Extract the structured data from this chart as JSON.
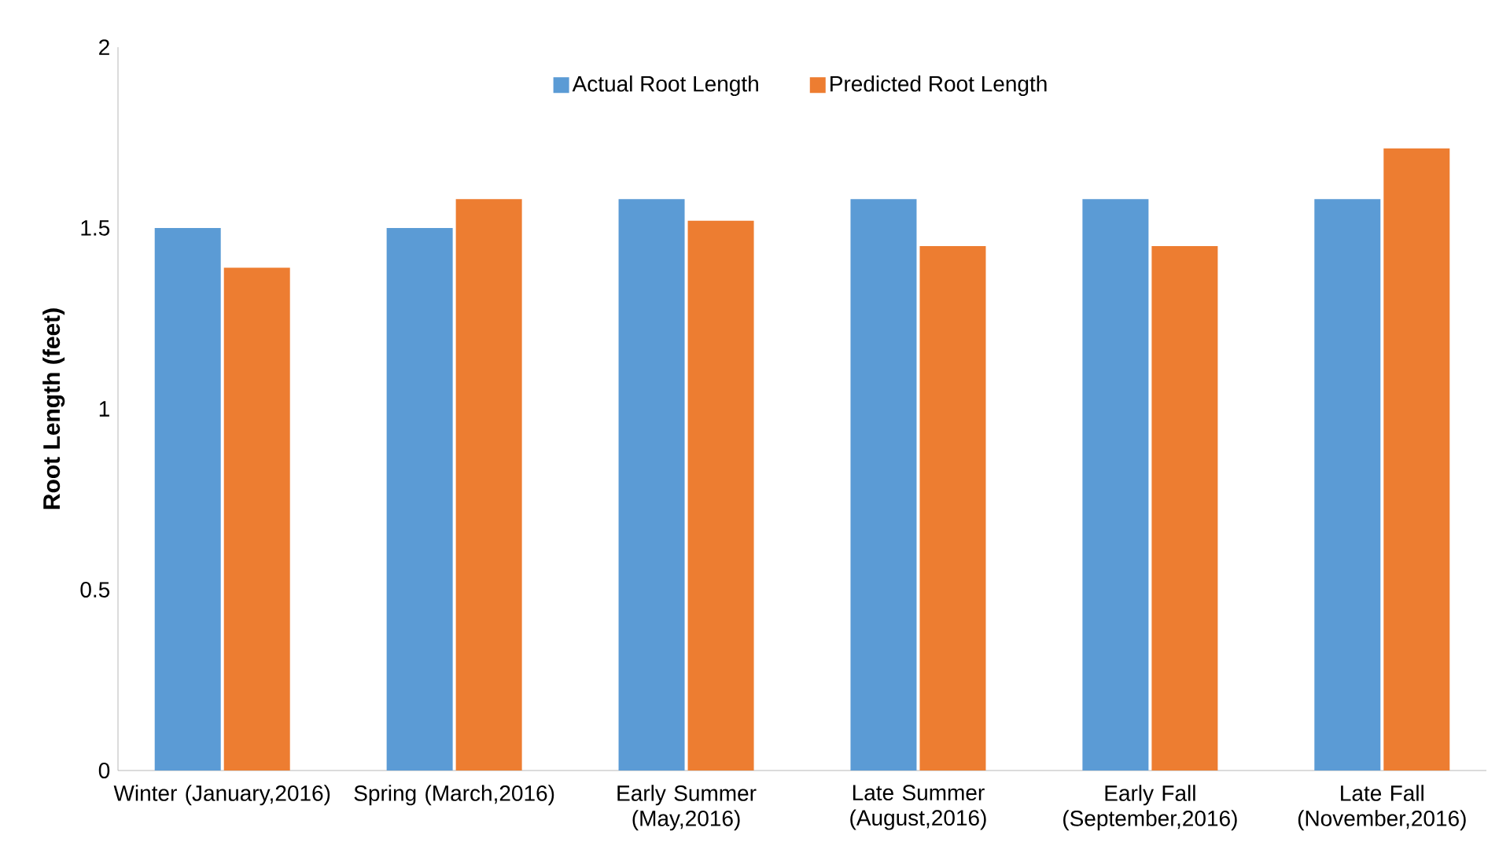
{
  "chart_data": {
    "type": "bar",
    "ylabel": "Root Length (feet)",
    "categories": [
      "Winter (January,2016)",
      "Spring (March,2016)",
      "Early Summer (May,2016)",
      "Late Summer (August,2016)",
      "Early Fall (September,2016)",
      "Late Fall (November,2016)"
    ],
    "series": [
      {
        "name": "Actual Root Length",
        "color": "#5b9bd5",
        "values": [
          1.5,
          1.5,
          1.58,
          1.58,
          1.58,
          1.58
        ]
      },
      {
        "name": "Predicted Root Length",
        "color": "#ed7d31",
        "values": [
          1.39,
          1.58,
          1.52,
          1.45,
          1.45,
          1.72
        ]
      }
    ],
    "ylim": [
      0,
      2
    ],
    "yticks": [
      0,
      0.5,
      1,
      1.5,
      2
    ],
    "grid": false,
    "legend": "top"
  }
}
